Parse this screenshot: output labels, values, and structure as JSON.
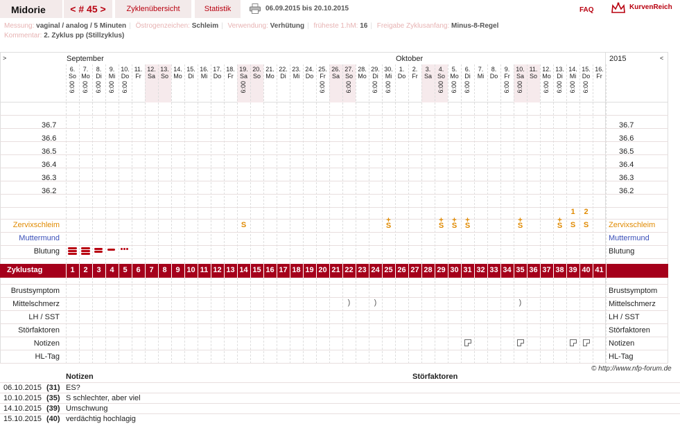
{
  "header": {
    "title": "Midorie",
    "cycle": "< # 45 >",
    "tab_overview": "Zyklenübersicht",
    "tab_stats": "Statistik",
    "date_range": "06.09.2015 bis 20.10.2015",
    "faq": "FAQ",
    "brand": "KurvenReich"
  },
  "info": {
    "messung_label": "Messung:",
    "messung_value": "vaginal / analog / 5 Minuten",
    "oestrogen_label": "Östrogenzeichen:",
    "oestrogen_value": "Schleim",
    "verwendung_label": "Verwendung:",
    "verwendung_value": "Verhütung",
    "hm_label": "früheste 1.hM:",
    "hm_value": "16",
    "freigabe_label": "Freigabe Zyklusanfang:",
    "freigabe_value": "Minus-8-Regel",
    "kommentar_label": "Kommentar:",
    "kommentar_value": "2. Zyklus pp (Stillzyklus)"
  },
  "chart": {
    "nav_left": ">",
    "nav_right": "<",
    "month_sep": "September",
    "month_oct": "Oktober",
    "year": "2015",
    "days": [
      {
        "d": "6.",
        "w": "So",
        "t": "6:00",
        "we": false
      },
      {
        "d": "7.",
        "w": "Mo",
        "t": "6:00",
        "we": false
      },
      {
        "d": "8.",
        "w": "Di",
        "t": "6:00",
        "we": false
      },
      {
        "d": "9.",
        "w": "Mi",
        "t": "6:00",
        "we": false
      },
      {
        "d": "10.",
        "w": "Do",
        "t": "6:00",
        "we": false
      },
      {
        "d": "11.",
        "w": "Fr",
        "t": "",
        "we": false
      },
      {
        "d": "12.",
        "w": "Sa",
        "t": "",
        "we": true
      },
      {
        "d": "13.",
        "w": "So",
        "t": "",
        "we": true
      },
      {
        "d": "14.",
        "w": "Mo",
        "t": "",
        "we": false
      },
      {
        "d": "15.",
        "w": "Di",
        "t": "",
        "we": false
      },
      {
        "d": "16.",
        "w": "Mi",
        "t": "",
        "we": false
      },
      {
        "d": "17.",
        "w": "Do",
        "t": "",
        "we": false
      },
      {
        "d": "18.",
        "w": "Fr",
        "t": "",
        "we": false
      },
      {
        "d": "19.",
        "w": "Sa",
        "t": "6:00",
        "we": true
      },
      {
        "d": "20.",
        "w": "So",
        "t": "",
        "we": true
      },
      {
        "d": "21.",
        "w": "Mo",
        "t": "",
        "we": false
      },
      {
        "d": "22.",
        "w": "Di",
        "t": "",
        "we": false
      },
      {
        "d": "23.",
        "w": "Mi",
        "t": "",
        "we": false
      },
      {
        "d": "24.",
        "w": "Do",
        "t": "",
        "we": false
      },
      {
        "d": "25.",
        "w": "Fr",
        "t": "6:00",
        "we": false
      },
      {
        "d": "26.",
        "w": "Sa",
        "t": "",
        "we": true
      },
      {
        "d": "27.",
        "w": "So",
        "t": "6:00",
        "we": true
      },
      {
        "d": "28.",
        "w": "Mo",
        "t": "",
        "we": false
      },
      {
        "d": "29.",
        "w": "Di",
        "t": "6:00",
        "we": false
      },
      {
        "d": "30.",
        "w": "Mi",
        "t": "6:00",
        "we": false
      },
      {
        "d": "1.",
        "w": "Do",
        "t": "",
        "we": false
      },
      {
        "d": "2.",
        "w": "Fr",
        "t": "",
        "we": false
      },
      {
        "d": "3.",
        "w": "Sa",
        "t": "",
        "we": true
      },
      {
        "d": "4.",
        "w": "So",
        "t": "6:00",
        "we": true
      },
      {
        "d": "5.",
        "w": "Mo",
        "t": "6:00",
        "we": false
      },
      {
        "d": "6.",
        "w": "Di",
        "t": "6:00",
        "we": false
      },
      {
        "d": "7.",
        "w": "Mi",
        "t": "",
        "we": false
      },
      {
        "d": "8.",
        "w": "Do",
        "t": "",
        "we": false
      },
      {
        "d": "9.",
        "w": "Fr",
        "t": "6:00",
        "we": false
      },
      {
        "d": "10.",
        "w": "Sa",
        "t": "6:00",
        "we": true
      },
      {
        "d": "11.",
        "w": "So",
        "t": "",
        "we": true
      },
      {
        "d": "12.",
        "w": "Mo",
        "t": "6:00",
        "we": false
      },
      {
        "d": "13.",
        "w": "Di",
        "t": "6:00",
        "we": false
      },
      {
        "d": "14.",
        "w": "Mi",
        "t": "6:00",
        "we": false
      },
      {
        "d": "15.",
        "w": "Do",
        "t": "6:00",
        "we": false
      },
      {
        "d": "16.",
        "w": "Fr",
        "t": "",
        "we": false
      }
    ],
    "temps": [
      "36.7",
      "36.6",
      "36.5",
      "36.4",
      "36.3",
      "36.2"
    ],
    "rows": {
      "zervix": "Zervixschleim",
      "muttermund": "Muttermund",
      "blutung": "Blutung",
      "zyklustag": "Zyklustag",
      "brust": "Brustsymptom",
      "mittel": "Mittelschmerz",
      "lh": "LH / SST",
      "stoer": "Störfaktoren",
      "notizen": "Notizen",
      "hl": "HL-Tag"
    },
    "mucus": [
      {
        "day": 14,
        "sym": "S"
      },
      {
        "day": 25,
        "sym": "S+"
      },
      {
        "day": 29,
        "sym": "S+"
      },
      {
        "day": 30,
        "sym": "S+"
      },
      {
        "day": 31,
        "sym": "S+"
      },
      {
        "day": 35,
        "sym": "S+"
      },
      {
        "day": 38,
        "sym": "S+"
      },
      {
        "day": 39,
        "sym": "S"
      },
      {
        "day": 40,
        "sym": "S"
      }
    ],
    "peak_marks": [
      {
        "day": 39,
        "label": "1"
      },
      {
        "day": 40,
        "label": "2"
      }
    ],
    "bleeding": [
      {
        "day": 1,
        "level": "strong"
      },
      {
        "day": 2,
        "level": "strong"
      },
      {
        "day": 3,
        "level": "medium"
      },
      {
        "day": 4,
        "level": "light"
      },
      {
        "day": 5,
        "level": "spotting"
      }
    ],
    "mittelschmerz_days": [
      22,
      24,
      35
    ],
    "note_days": [
      31,
      35,
      39,
      40
    ]
  },
  "copyright": "© http://www.nfp-forum.de",
  "notes_table": {
    "col_notizen": "Notizen",
    "col_stoer": "Störfaktoren",
    "rows": [
      {
        "date": "06.10.2015",
        "day": "(31)",
        "text": "ES?"
      },
      {
        "date": "10.10.2015",
        "day": "(35)",
        "text": "S schlechter, aber viel"
      },
      {
        "date": "14.10.2015",
        "day": "(39)",
        "text": "Umschwung"
      },
      {
        "date": "15.10.2015",
        "day": "(40)",
        "text": "verdächtig hochlagig"
      }
    ]
  }
}
